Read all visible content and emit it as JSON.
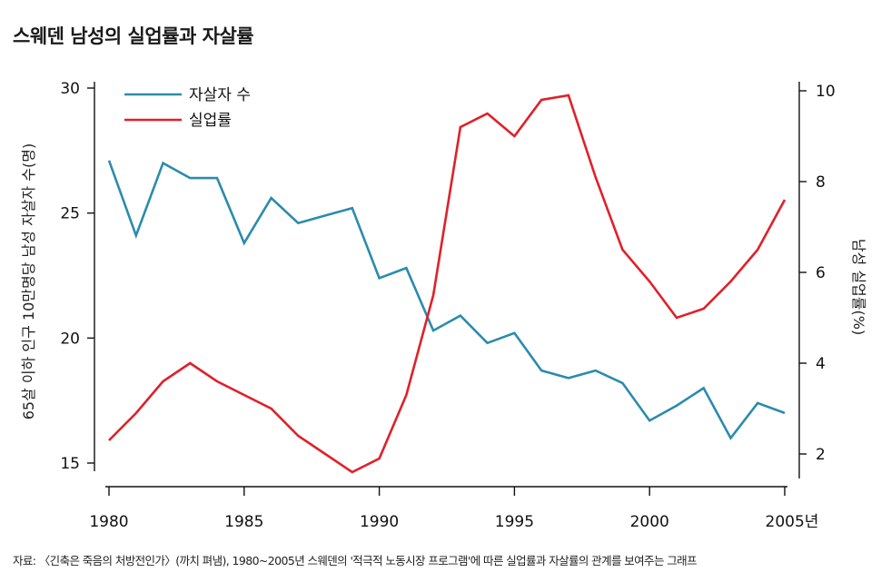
{
  "title": "스웨덴 남성의 실업률과 자살률",
  "source": "자료: 〈긴축은 죽음의 처방전인가〉(까치 펴냄), 1980~2005년 스웨덴의 '적극적 노동시장 프로그램'에 따른 실업률과 자살률의 관계를 보여주는 그래프",
  "chart_data": {
    "type": "line",
    "x": [
      1980,
      1981,
      1982,
      1983,
      1984,
      1985,
      1986,
      1987,
      1988,
      1989,
      1990,
      1991,
      1992,
      1993,
      1994,
      1995,
      1996,
      1997,
      1998,
      1999,
      2000,
      2001,
      2002,
      2003,
      2004,
      2005
    ],
    "xticks": [
      "1980",
      "1985",
      "1990",
      "1995",
      "2000",
      "2005년"
    ],
    "xtick_values": [
      1980,
      1985,
      1990,
      1995,
      2000,
      2005
    ],
    "xlim": [
      1980,
      2005
    ],
    "y_left": {
      "label": "65살 이하 인구 10만명당 남성 자살자 수(명)",
      "lim": [
        15,
        30
      ],
      "ticks": [
        15,
        20,
        25,
        30
      ]
    },
    "y_right": {
      "label": "남성 실업률(%)",
      "lim": [
        1.5,
        10
      ],
      "ticks": [
        2,
        4,
        6,
        8,
        10
      ]
    },
    "series": [
      {
        "name": "자살자 수",
        "axis": "left",
        "color": "#2b8bad",
        "values": [
          27.1,
          24.1,
          27.0,
          26.4,
          26.4,
          23.8,
          25.6,
          24.6,
          24.9,
          25.2,
          22.4,
          22.8,
          20.3,
          20.9,
          19.8,
          20.2,
          18.7,
          18.4,
          18.7,
          18.2,
          16.7,
          17.3,
          18.0,
          16.0,
          17.4,
          17.0
        ]
      },
      {
        "name": "실업률",
        "axis": "right",
        "color": "#e0202a",
        "values": [
          2.3,
          2.9,
          3.6,
          4.0,
          3.6,
          3.3,
          3.0,
          2.4,
          2.0,
          1.6,
          1.9,
          3.3,
          5.5,
          9.2,
          9.5,
          9.0,
          9.8,
          9.9,
          8.1,
          6.5,
          5.8,
          5.0,
          5.2,
          5.8,
          6.5,
          7.6
        ]
      }
    ],
    "legend": "top-left"
  }
}
